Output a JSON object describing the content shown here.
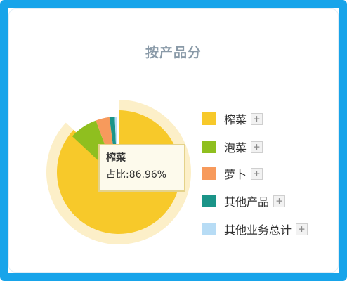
{
  "chart_data": {
    "type": "pie",
    "title": "按产品分",
    "categories": [
      "榨菜",
      "泡菜",
      "萝卜",
      "其他产品",
      "其他业务总计"
    ],
    "values": [
      86.96,
      7.4,
      3.6,
      1.4,
      0.64
    ],
    "colors": [
      "#f7c92a",
      "#8fbf1f",
      "#f79a5c",
      "#1a9488",
      "#b7dcf5"
    ],
    "highlight_color": "#fcefc8",
    "legend_position": "right",
    "tooltip": {
      "name": "榨菜",
      "label": "占比:",
      "value_text": "86.96%"
    }
  },
  "legend": {
    "expand_symbol": "+"
  }
}
